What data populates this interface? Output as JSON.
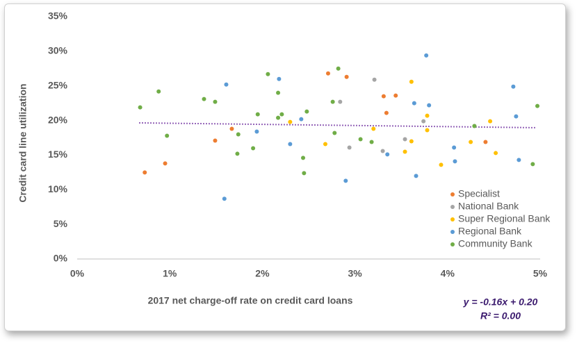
{
  "chart_data": {
    "type": "scatter",
    "x_label": "2017 net charge-off rate on credit card loans",
    "y_label": "Credit card line utilization",
    "xlim": [
      0,
      5
    ],
    "ylim": [
      0,
      35
    ],
    "xticks": [
      {
        "value": 0,
        "label": "0%"
      },
      {
        "value": 1,
        "label": "1%"
      },
      {
        "value": 2,
        "label": "2%"
      },
      {
        "value": 3,
        "label": "3%"
      },
      {
        "value": 4,
        "label": "4%"
      },
      {
        "value": 5,
        "label": "5%"
      }
    ],
    "yticks": [
      {
        "value": 0,
        "label": "0%"
      },
      {
        "value": 5,
        "label": "5%"
      },
      {
        "value": 10,
        "label": "10%"
      },
      {
        "value": 15,
        "label": "15%"
      },
      {
        "value": 20,
        "label": "20%"
      },
      {
        "value": 25,
        "label": "25%"
      },
      {
        "value": 30,
        "label": "30%"
      },
      {
        "value": 35,
        "label": "35%"
      }
    ],
    "grid": false,
    "legend_position": "bottom-right",
    "series": [
      {
        "name": "Specialist",
        "color": "#ed7d31",
        "x": [
          0.73,
          0.95,
          1.49,
          1.67,
          2.71,
          2.91,
          3.31,
          3.34,
          3.44,
          4.41
        ],
        "y": [
          12.5,
          13.8,
          17.1,
          18.8,
          26.8,
          26.3,
          23.5,
          21.1,
          23.6,
          16.9
        ]
      },
      {
        "name": "National Bank",
        "color": "#a5a5a5",
        "x": [
          2.84,
          2.94,
          3.21,
          3.3,
          3.74,
          3.54,
          4.29
        ],
        "y": [
          22.7,
          16.1,
          25.9,
          15.6,
          19.9,
          17.3,
          19.2
        ]
      },
      {
        "name": "Super Regional Bank",
        "color": "#ffc000",
        "x": [
          2.3,
          2.68,
          3.2,
          3.54,
          3.61,
          3.61,
          3.78,
          3.78,
          3.93,
          4.25,
          4.46,
          4.52
        ],
        "y": [
          19.8,
          16.6,
          18.8,
          15.5,
          25.6,
          17.0,
          20.7,
          18.6,
          13.6,
          16.9,
          19.9,
          15.3
        ]
      },
      {
        "name": "Regional Bank",
        "color": "#5b9bd5",
        "x": [
          1.61,
          1.59,
          1.94,
          2.18,
          2.3,
          2.42,
          2.9,
          3.35,
          3.64,
          3.66,
          3.77,
          3.8,
          4.07,
          4.08,
          4.71,
          4.74,
          4.77
        ],
        "y": [
          25.2,
          8.7,
          18.4,
          26.0,
          16.6,
          20.2,
          11.3,
          15.1,
          22.5,
          12.0,
          29.4,
          22.2,
          16.1,
          14.1,
          24.9,
          20.6,
          14.3
        ]
      },
      {
        "name": "Community Bank",
        "color": "#70ad47",
        "x": [
          0.68,
          0.88,
          0.97,
          1.37,
          1.49,
          1.74,
          1.73,
          1.9,
          1.95,
          2.06,
          2.17,
          2.17,
          2.21,
          2.44,
          2.45,
          2.48,
          2.76,
          2.78,
          2.82,
          3.06,
          3.18,
          4.29,
          4.92,
          4.97
        ],
        "y": [
          21.9,
          24.2,
          17.8,
          23.1,
          22.7,
          18.0,
          15.2,
          16.0,
          20.9,
          26.7,
          24.0,
          20.4,
          20.9,
          14.6,
          12.4,
          21.3,
          22.7,
          18.2,
          27.5,
          17.3,
          16.9,
          19.2,
          13.7,
          22.1
        ]
      }
    ],
    "trendline": {
      "color": "#7030a0",
      "x": [
        0.67,
        4.96
      ],
      "y": [
        19.66,
        18.96
      ]
    },
    "annotations": [
      "y = -0.16x + 0.20",
      "R² = 0.00"
    ]
  }
}
